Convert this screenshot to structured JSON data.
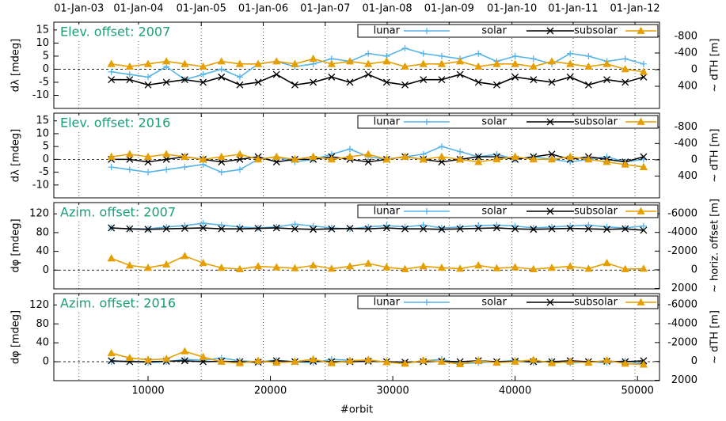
{
  "chart_data": [
    {
      "type": "line",
      "annotation": "Elev. offset: 2007",
      "ylabel": "dλ [mdeg]",
      "y2label": "~ dTH [m]",
      "xlim": [
        2300,
        51800
      ],
      "ylim": [
        -15,
        18
      ],
      "yticks": [
        -10,
        -5,
        0,
        5,
        10,
        15
      ],
      "y2lim": [
        933,
        -1143
      ],
      "y2ticks": [
        -800,
        -400,
        0,
        400
      ],
      "x2ticks": [
        {
          "value": 4350,
          "label": "01-Jan-03"
        },
        {
          "value": 9220,
          "label": "01-Jan-04"
        },
        {
          "value": 14350,
          "label": "01-Jan-05"
        },
        {
          "value": 19415,
          "label": "01-Jan-06"
        },
        {
          "value": 24480,
          "label": "01-Jan-07"
        },
        {
          "value": 29545,
          "label": "01-Jan-08"
        },
        {
          "value": 34610,
          "label": "01-Jan-09"
        },
        {
          "value": 39740,
          "label": "01-Jan-10"
        },
        {
          "value": 44740,
          "label": "01-Jan-11"
        },
        {
          "value": 49800,
          "label": "01-Jan-12"
        }
      ],
      "legend": "upper right",
      "x": [
        7000,
        8500,
        10000,
        11500,
        13000,
        14500,
        16000,
        17500,
        19000,
        20500,
        22000,
        23500,
        25000,
        26500,
        28000,
        29500,
        31000,
        32500,
        34000,
        35500,
        37000,
        38500,
        40000,
        41500,
        43000,
        44500,
        46000,
        47500,
        49000,
        50500
      ],
      "series": [
        {
          "name": "lunar",
          "color": "#56b4e9",
          "marker": "plus",
          "values": [
            -1,
            -2,
            -3,
            1,
            -4,
            -2,
            0,
            -3,
            2,
            3,
            1,
            2,
            4,
            3,
            6,
            5,
            8,
            6,
            5,
            4,
            6,
            3,
            5,
            4,
            2,
            6,
            5,
            3,
            4,
            2
          ]
        },
        {
          "name": "solar",
          "color": "#000000",
          "marker": "cross",
          "values": [
            -4,
            -4,
            -6,
            -5,
            -4,
            -5,
            -3,
            -6,
            -5,
            -2,
            -6,
            -5,
            -3,
            -5,
            -2,
            -5,
            -6,
            -4,
            -4,
            -2,
            -5,
            -6,
            -3,
            -4,
            -5,
            -3,
            -6,
            -4,
            -5,
            -3
          ]
        },
        {
          "name": "subsolar",
          "color": "#e69f00",
          "marker": "triangle",
          "values": [
            2,
            1,
            2,
            3,
            2,
            1,
            3,
            2,
            2,
            3,
            2,
            4,
            2,
            3,
            2,
            3,
            1,
            2,
            2,
            3,
            1,
            2,
            2,
            1,
            3,
            2,
            1,
            2,
            0,
            -1
          ]
        }
      ]
    },
    {
      "type": "line",
      "annotation": "Elev. offset: 2016",
      "ylabel": "dλ [mdeg]",
      "y2label": "~ dTH [m]",
      "xlim": [
        2300,
        51800
      ],
      "ylim": [
        -15,
        18
      ],
      "yticks": [
        -10,
        -5,
        0,
        5,
        10,
        15
      ],
      "y2lim": [
        933,
        -1143
      ],
      "y2ticks": [
        -800,
        -400,
        0,
        400
      ],
      "legend": "upper right",
      "x": [
        7000,
        8500,
        10000,
        11500,
        13000,
        14500,
        16000,
        17500,
        19000,
        20500,
        22000,
        23500,
        25000,
        26500,
        28000,
        29500,
        31000,
        32500,
        34000,
        35500,
        37000,
        38500,
        40000,
        41500,
        43000,
        44500,
        46000,
        47500,
        49000,
        50500
      ],
      "series": [
        {
          "name": "lunar",
          "color": "#56b4e9",
          "marker": "plus",
          "values": [
            -3,
            -4,
            -5,
            -4,
            -3,
            -2,
            -5,
            -4,
            0,
            1,
            -1,
            0,
            2,
            4,
            1,
            0,
            1,
            2,
            5,
            3,
            1,
            2,
            0,
            1,
            0,
            -1,
            0,
            1,
            -1,
            0
          ]
        },
        {
          "name": "solar",
          "color": "#000000",
          "marker": "cross",
          "values": [
            0,
            0,
            -1,
            0,
            1,
            0,
            -1,
            0,
            1,
            -1,
            0,
            0,
            1,
            0,
            -1,
            0,
            1,
            0,
            -1,
            0,
            1,
            1,
            0,
            1,
            2,
            0,
            1,
            0,
            -1,
            1
          ]
        },
        {
          "name": "subsolar",
          "color": "#e69f00",
          "marker": "triangle",
          "values": [
            1,
            2,
            1,
            2,
            1,
            0,
            1,
            2,
            0,
            1,
            0,
            1,
            0,
            1,
            2,
            0,
            1,
            0,
            1,
            0,
            -1,
            0,
            1,
            0,
            0,
            1,
            0,
            -1,
            -2,
            -3
          ]
        }
      ]
    },
    {
      "type": "line",
      "annotation": "Azim. offset: 2007",
      "ylabel": "dφ [mdeg]",
      "y2label": "~ horiz. offset [m]",
      "xlim": [
        2300,
        51800
      ],
      "ylim": [
        -40,
        144
      ],
      "yticks": [
        0,
        40,
        80,
        120
      ],
      "y2lim": [
        2040,
        -7190
      ],
      "y2ticks": [
        -6000,
        -4000,
        -2000,
        0,
        2000
      ],
      "legend": "upper right",
      "x": [
        7000,
        8500,
        10000,
        11500,
        13000,
        14500,
        16000,
        17500,
        19000,
        20500,
        22000,
        23500,
        25000,
        26500,
        28000,
        29500,
        31000,
        32500,
        34000,
        35500,
        37000,
        38500,
        40000,
        41500,
        43000,
        44500,
        46000,
        47500,
        49000,
        50500
      ],
      "series": [
        {
          "name": "lunar",
          "color": "#56b4e9",
          "marker": "plus",
          "values": [
            90,
            88,
            88,
            92,
            95,
            100,
            96,
            92,
            90,
            92,
            98,
            94,
            90,
            88,
            92,
            95,
            92,
            96,
            90,
            92,
            95,
            96,
            94,
            90,
            92,
            94,
            96,
            92,
            90,
            94
          ]
        },
        {
          "name": "solar",
          "color": "#000000",
          "marker": "cross",
          "values": [
            90,
            88,
            87,
            88,
            89,
            90,
            88,
            88,
            89,
            90,
            88,
            87,
            88,
            89,
            88,
            90,
            88,
            88,
            87,
            88,
            89,
            90,
            88,
            87,
            88,
            89,
            88,
            87,
            88,
            85
          ]
        },
        {
          "name": "subsolar",
          "color": "#e69f00",
          "marker": "triangle",
          "values": [
            25,
            10,
            5,
            12,
            30,
            15,
            5,
            2,
            8,
            6,
            4,
            10,
            3,
            8,
            14,
            6,
            2,
            8,
            5,
            3,
            10,
            4,
            6,
            2,
            5,
            8,
            3,
            15,
            2,
            3
          ]
        }
      ]
    },
    {
      "type": "line",
      "annotation": "Azim. offset: 2016",
      "ylabel": "dφ [mdeg]",
      "y2label": "~ dTH [m]",
      "xlabel": "#orbit",
      "xlim": [
        2300,
        51800
      ],
      "xticks": [
        10000,
        20000,
        30000,
        40000,
        50000
      ],
      "ylim": [
        -40,
        144
      ],
      "yticks": [
        0,
        40,
        80,
        120
      ],
      "y2lim": [
        2040,
        -7190
      ],
      "y2ticks": [
        -6000,
        -4000,
        -2000,
        0,
        2000
      ],
      "legend": "upper right",
      "x": [
        7000,
        8500,
        10000,
        11500,
        13000,
        14500,
        16000,
        17500,
        19000,
        20500,
        22000,
        23500,
        25000,
        26500,
        28000,
        29500,
        31000,
        32500,
        34000,
        35500,
        37000,
        38500,
        40000,
        41500,
        43000,
        44500,
        46000,
        47500,
        49000,
        50500
      ],
      "series": [
        {
          "name": "lunar",
          "color": "#56b4e9",
          "marker": "plus",
          "values": [
            0,
            2,
            -2,
            0,
            5,
            3,
            8,
            2,
            0,
            3,
            0,
            -2,
            5,
            3,
            2,
            0,
            -3,
            2,
            5,
            -4,
            -2,
            0,
            3,
            -2,
            2,
            -3,
            0,
            -2,
            2,
            -5
          ]
        },
        {
          "name": "solar",
          "color": "#000000",
          "marker": "cross",
          "values": [
            2,
            0,
            0,
            1,
            2,
            0,
            1,
            0,
            -1,
            2,
            0,
            1,
            0,
            0,
            1,
            0,
            -1,
            0,
            1,
            0,
            2,
            0,
            1,
            0,
            0,
            2,
            0,
            1,
            0,
            2
          ]
        },
        {
          "name": "subsolar",
          "color": "#e69f00",
          "marker": "triangle",
          "values": [
            18,
            8,
            4,
            6,
            22,
            10,
            0,
            -3,
            2,
            -2,
            0,
            5,
            -3,
            2,
            4,
            -1,
            -4,
            3,
            0,
            -5,
            2,
            -2,
            0,
            4,
            -3,
            0,
            -2,
            3,
            -4,
            -6
          ]
        }
      ]
    }
  ]
}
